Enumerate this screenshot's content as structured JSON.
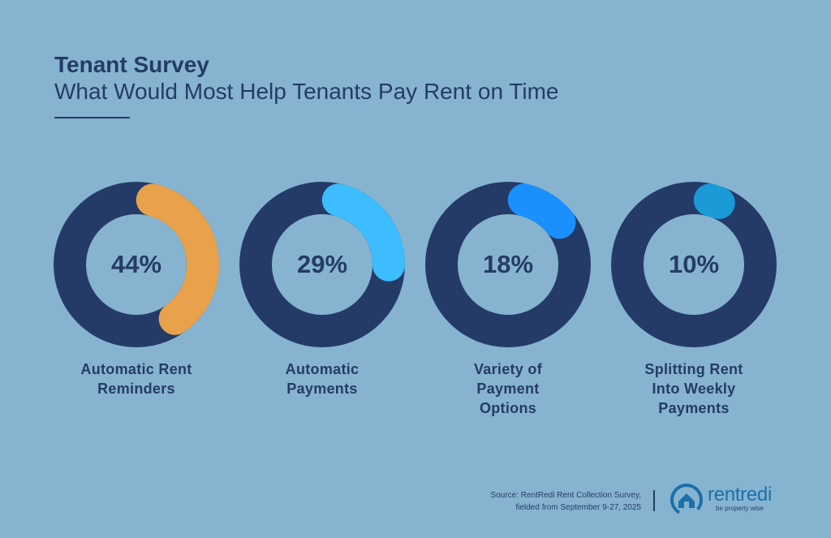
{
  "header": {
    "title": "Tenant Survey",
    "subtitle": "What Would Most Help Tenants Pay Rent on Time"
  },
  "chart_data": {
    "type": "donut",
    "title": "What Would Most Help Tenants Pay Rent on Time",
    "track_color": "#253b67",
    "series": [
      {
        "label_lines": [
          "Automatic Rent",
          "Reminders"
        ],
        "value": 44,
        "value_label": "44%",
        "color": "#e8a24b"
      },
      {
        "label_lines": [
          "Automatic",
          "Payments"
        ],
        "value": 29,
        "value_label": "29%",
        "color": "#3dbcff"
      },
      {
        "label_lines": [
          "Variety of",
          "Payment",
          "Options"
        ],
        "value": 18,
        "value_label": "18%",
        "color": "#1a90ff"
      },
      {
        "label_lines": [
          "Splitting Rent",
          "Into Weekly",
          "Payments"
        ],
        "value": 10,
        "value_label": "10%",
        "color": "#1a9ad6"
      }
    ]
  },
  "footer": {
    "source_line1": "Source: RentRedi Rent Collection Survey,",
    "source_line2": "fielded from September 9-27, 2025",
    "logo_text": "rentredi",
    "logo_tagline": "be property wise",
    "logo_icon": "house-circle-logo-icon"
  }
}
